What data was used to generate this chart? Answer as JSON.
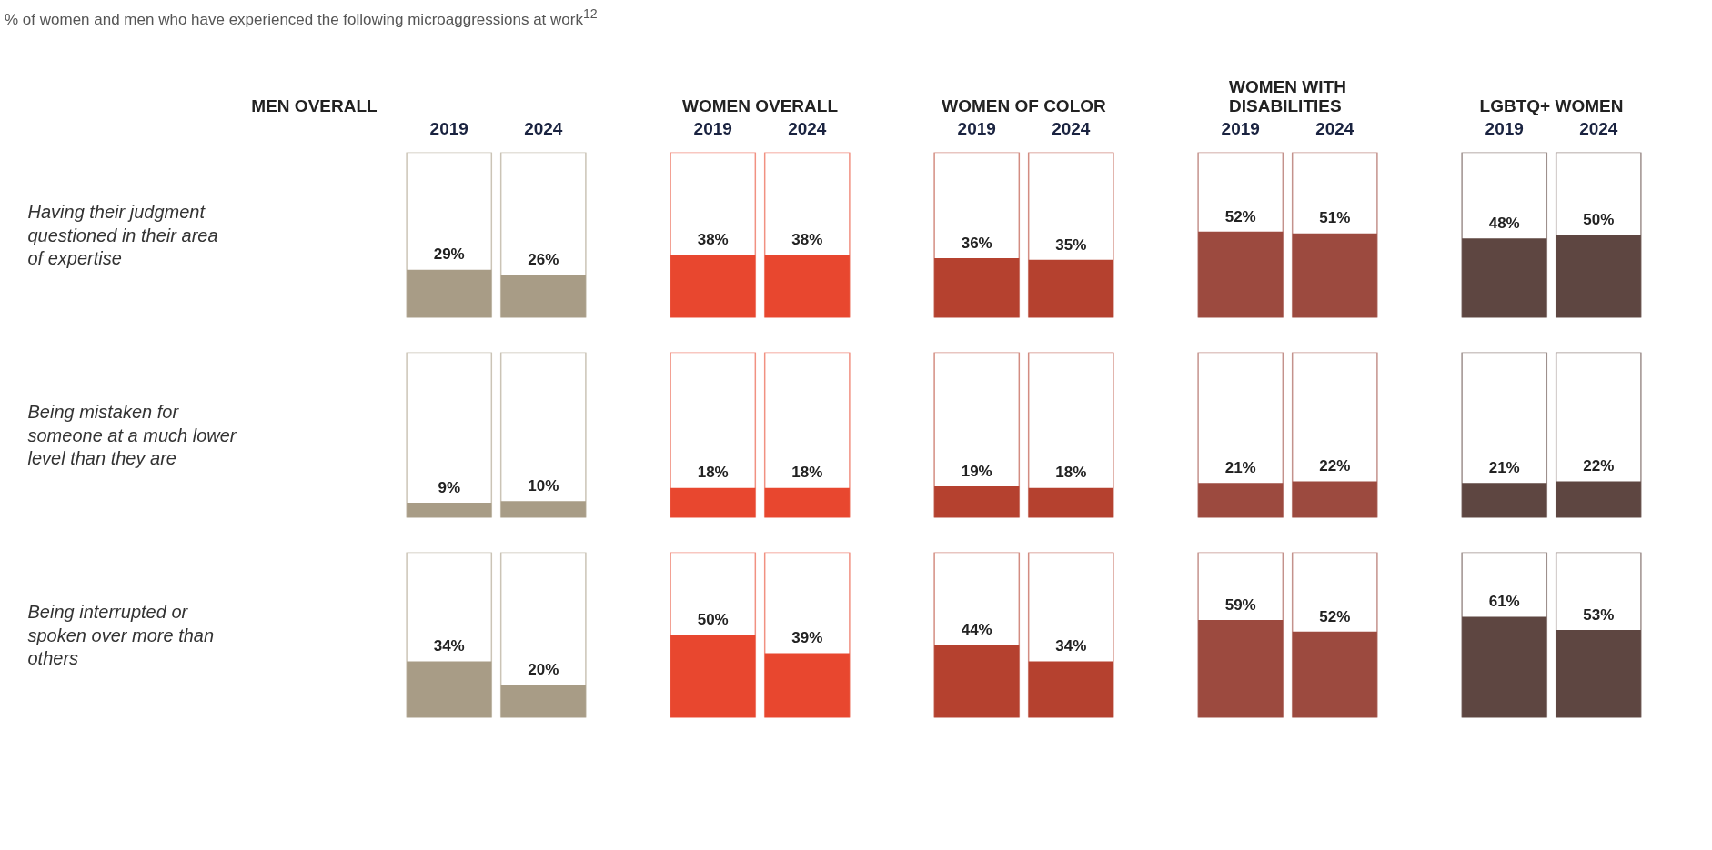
{
  "chart_data": [
    {
      "type": "bar",
      "title": "MEN OVERALL",
      "ylabel": "Having their judgment questioned in their area of expertise",
      "annotations": [
        "% of women and men who have experienced the following microaggressions at work$^{12}$"
      ],
      "categories": [
        "2019",
        "2024"
      ],
      "values": [
        29,
        26
      ],
      "value_labels": [
        "29%",
        "26%"
      ],
      "color": "#a89c86",
      "ylim": [
        0,
        100
      ],
      "tick_labels": "x"
    },
    {
      "type": "bar",
      "title": "WOMEN OVERALL",
      "categories": [
        "2019",
        "2024"
      ],
      "values": [
        38,
        38
      ],
      "value_labels": [
        "38%",
        "38%"
      ],
      "color": "#e8472f",
      "ylim": [
        0,
        100
      ],
      "tick_labels": "x"
    },
    {
      "type": "bar",
      "title": "WOMEN OF COLOR",
      "categories": [
        "2019",
        "2024"
      ],
      "values": [
        36,
        35
      ],
      "value_labels": [
        "36%",
        "35%"
      ],
      "color": "#b5412f",
      "ylim": [
        0,
        100
      ],
      "tick_labels": "x"
    },
    {
      "type": "bar",
      "title": "WOMEN WITH DISABILITIES",
      "categories": [
        "2019",
        "2024"
      ],
      "values": [
        52,
        51
      ],
      "value_labels": [
        "52%",
        "51%"
      ],
      "color": "#9c4a3f",
      "ylim": [
        0,
        100
      ],
      "tick_labels": "x"
    },
    {
      "type": "bar",
      "title": "LGBTQ+ WOMEN",
      "categories": [
        "2019",
        "2024"
      ],
      "values": [
        48,
        50
      ],
      "value_labels": [
        "48%",
        "50%"
      ],
      "color": "#5e4641",
      "ylim": [
        0,
        100
      ],
      "tick_labels": "x"
    },
    {
      "type": "bar",
      "ylabel": "Being mistaken for someone at a much lower level than they are",
      "categories": [
        null,
        null
      ],
      "values": [
        9,
        10
      ],
      "value_labels": [
        "9%",
        "10%"
      ],
      "color": "#a89c86",
      "ylim": [
        0,
        100
      ],
      "tick_labels": false
    },
    {
      "type": "bar",
      "categories": [
        null,
        null
      ],
      "values": [
        18,
        18
      ],
      "value_labels": [
        "18%",
        "18%"
      ],
      "color": "#e8472f",
      "ylim": [
        0,
        100
      ],
      "tick_labels": false
    },
    {
      "type": "bar",
      "categories": [
        null,
        null
      ],
      "values": [
        19,
        18
      ],
      "value_labels": [
        "19%",
        "18%"
      ],
      "color": "#b5412f",
      "ylim": [
        0,
        100
      ],
      "tick_labels": false
    },
    {
      "type": "bar",
      "categories": [
        null,
        null
      ],
      "values": [
        21,
        22
      ],
      "value_labels": [
        "21%",
        "22%"
      ],
      "color": "#9c4a3f",
      "ylim": [
        0,
        100
      ],
      "tick_labels": false
    },
    {
      "type": "bar",
      "categories": [
        null,
        null
      ],
      "values": [
        21,
        22
      ],
      "value_labels": [
        "21%",
        "22%"
      ],
      "color": "#5e4641",
      "ylim": [
        0,
        100
      ],
      "tick_labels": false
    },
    {
      "type": "bar",
      "ylabel": "Being interrupted or spoken over more than others",
      "categories": [
        null,
        null
      ],
      "values": [
        34,
        20
      ],
      "value_labels": [
        "34%",
        "20%"
      ],
      "color": "#a89c86",
      "ylim": [
        0,
        100
      ],
      "tick_labels": false
    },
    {
      "type": "bar",
      "categories": [
        null,
        null
      ],
      "values": [
        50,
        39
      ],
      "value_labels": [
        "50%",
        "39%"
      ],
      "color": "#e8472f",
      "ylim": [
        0,
        100
      ],
      "tick_labels": false
    },
    {
      "type": "bar",
      "categories": [
        null,
        null
      ],
      "values": [
        44,
        34
      ],
      "value_labels": [
        "44%",
        "34%"
      ],
      "color": "#b5412f",
      "ylim": [
        0,
        100
      ],
      "tick_labels": false
    },
    {
      "type": "bar",
      "categories": [
        null,
        null
      ],
      "values": [
        59,
        52
      ],
      "value_labels": [
        "59%",
        "52%"
      ],
      "color": "#9c4a3f",
      "ylim": [
        0,
        100
      ],
      "tick_labels": false
    },
    {
      "type": "bar",
      "categories": [
        null,
        null
      ],
      "values": [
        61,
        53
      ],
      "value_labels": [
        "61%",
        "53%"
      ],
      "color": "#5e4641",
      "ylim": [
        0,
        100
      ],
      "tick_labels": false
    }
  ]
}
